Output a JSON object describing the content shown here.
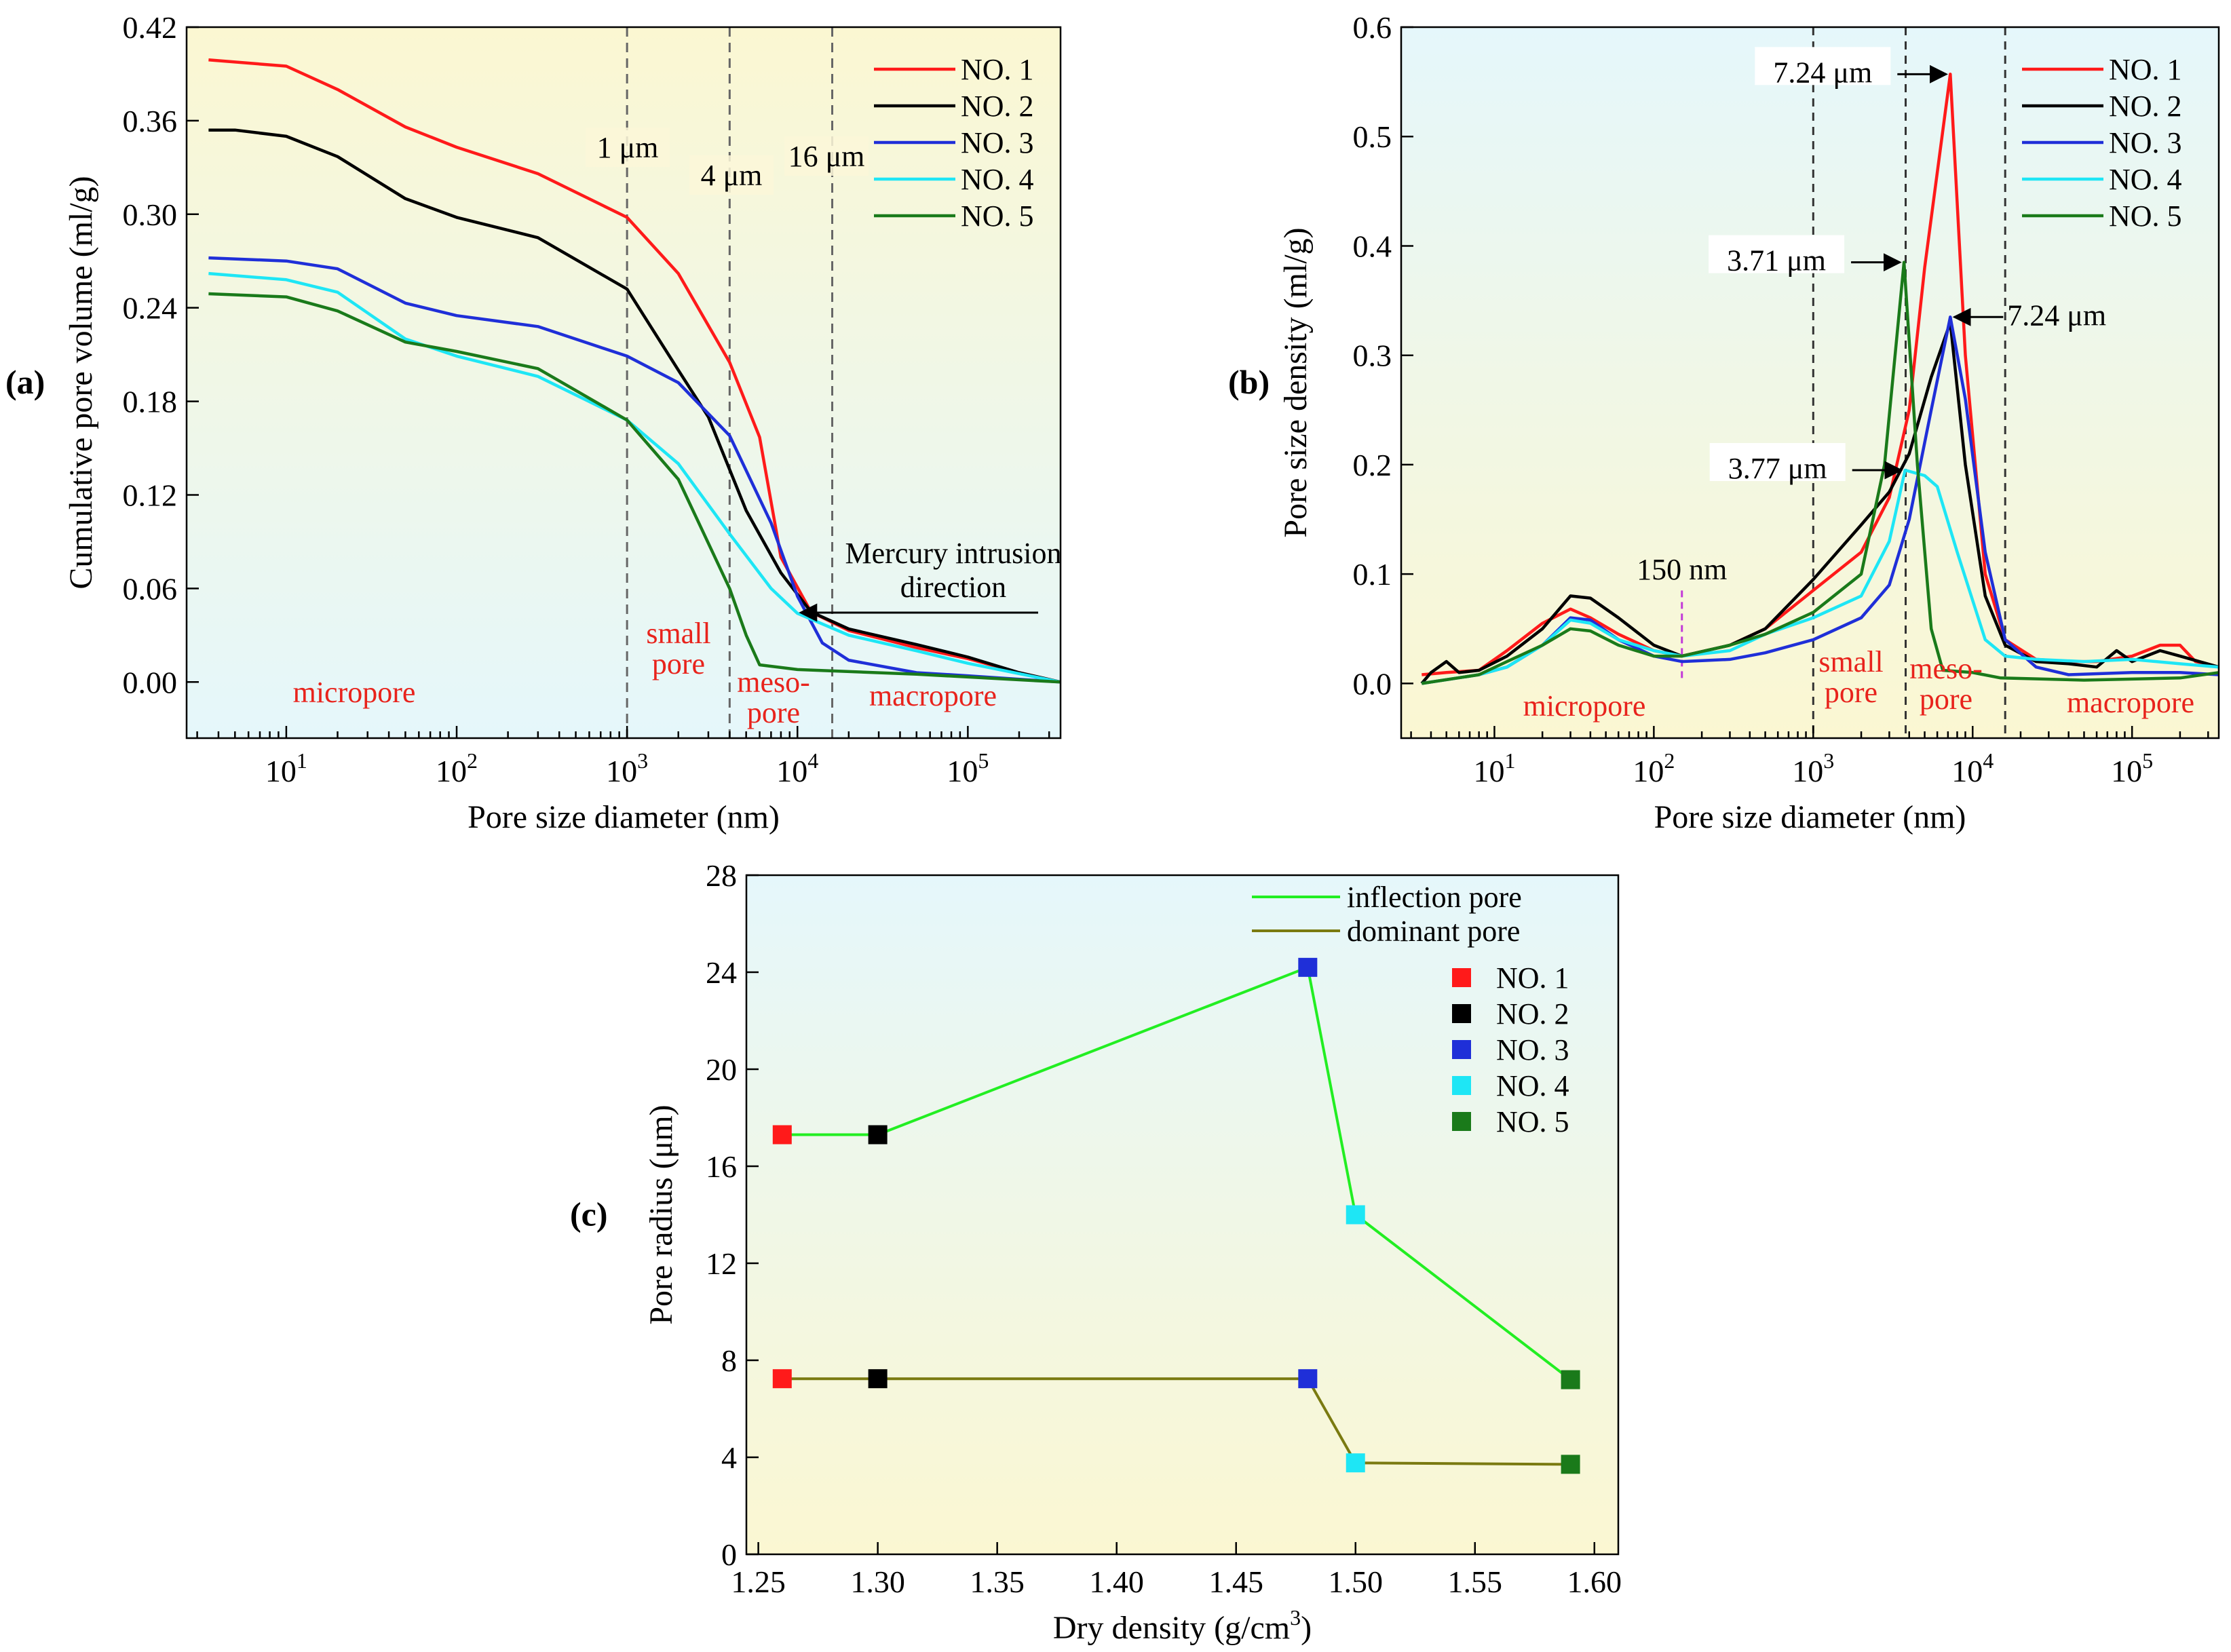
{
  "colors": {
    "NO. 1": "#ff1a1a",
    "NO. 2": "#000000",
    "NO. 3": "#1f2fd8",
    "NO. 4": "#1ee6f5",
    "NO. 5": "#1a7a1a",
    "inflection": "#22ee22",
    "dominant": "#7a7a10",
    "region_text": "#e8231c"
  },
  "chart_data": [
    {
      "panel": "(a)",
      "type": "line",
      "xscale": "log",
      "xlabel": "Pore size diameter (nm)",
      "ylabel": "Cumulative pore volume (ml/g)",
      "xlim": [
        2.6,
        350000
      ],
      "ylim": [
        -0.036,
        0.42
      ],
      "yticks": [
        "0.00",
        "0.06",
        "0.12",
        "0.18",
        "0.24",
        "0.30",
        "0.36",
        "0.42"
      ],
      "xticks": [
        {
          "base": "10",
          "exp": "1"
        },
        {
          "base": "10",
          "exp": "2"
        },
        {
          "base": "10",
          "exp": "3"
        },
        {
          "base": "10",
          "exp": "4"
        },
        {
          "base": "10",
          "exp": "5"
        }
      ],
      "vlines": [
        {
          "x": 1000,
          "label": "1 μm"
        },
        {
          "x": 4000,
          "label": "4 μm"
        },
        {
          "x": 16000,
          "label": "16 μm"
        }
      ],
      "regions": [
        "micropore",
        "small",
        "pore",
        "meso-",
        "pore",
        "macropore"
      ],
      "annotation": [
        "Mercury intrusion",
        "direction"
      ],
      "series": [
        {
          "name": "NO. 1",
          "points": [
            [
              3.5,
              0.399
            ],
            [
              10,
              0.395
            ],
            [
              20,
              0.38
            ],
            [
              50,
              0.356
            ],
            [
              100,
              0.343
            ],
            [
              300,
              0.326
            ],
            [
              1000,
              0.298
            ],
            [
              2000,
              0.262
            ],
            [
              4000,
              0.205
            ],
            [
              6000,
              0.157
            ],
            [
              8000,
              0.08
            ],
            [
              12000,
              0.045
            ],
            [
              20000,
              0.033
            ],
            [
              50000,
              0.022
            ],
            [
              100000,
              0.015
            ],
            [
              200000,
              0.006
            ],
            [
              350000,
              0.0
            ]
          ]
        },
        {
          "name": "NO. 2",
          "points": [
            [
              3.5,
              0.354
            ],
            [
              5,
              0.354
            ],
            [
              10,
              0.35
            ],
            [
              20,
              0.337
            ],
            [
              50,
              0.31
            ],
            [
              100,
              0.298
            ],
            [
              300,
              0.285
            ],
            [
              1000,
              0.252
            ],
            [
              2000,
              0.2
            ],
            [
              3000,
              0.17
            ],
            [
              5000,
              0.11
            ],
            [
              8000,
              0.07
            ],
            [
              12000,
              0.045
            ],
            [
              20000,
              0.034
            ],
            [
              50000,
              0.024
            ],
            [
              100000,
              0.016
            ],
            [
              200000,
              0.006
            ],
            [
              350000,
              0.0
            ]
          ]
        },
        {
          "name": "NO. 3",
          "points": [
            [
              3.5,
              0.272
            ],
            [
              10,
              0.27
            ],
            [
              20,
              0.265
            ],
            [
              50,
              0.243
            ],
            [
              100,
              0.235
            ],
            [
              300,
              0.228
            ],
            [
              1000,
              0.209
            ],
            [
              2000,
              0.192
            ],
            [
              4000,
              0.158
            ],
            [
              7000,
              0.102
            ],
            [
              10000,
              0.055
            ],
            [
              14000,
              0.025
            ],
            [
              20000,
              0.014
            ],
            [
              50000,
              0.006
            ],
            [
              100000,
              0.004
            ],
            [
              350000,
              0.0
            ]
          ]
        },
        {
          "name": "NO. 4",
          "points": [
            [
              3.5,
              0.262
            ],
            [
              10,
              0.258
            ],
            [
              20,
              0.25
            ],
            [
              50,
              0.22
            ],
            [
              100,
              0.209
            ],
            [
              300,
              0.196
            ],
            [
              1000,
              0.168
            ],
            [
              2000,
              0.14
            ],
            [
              4000,
              0.095
            ],
            [
              7000,
              0.06
            ],
            [
              10000,
              0.044
            ],
            [
              20000,
              0.03
            ],
            [
              50000,
              0.02
            ],
            [
              100000,
              0.012
            ],
            [
              350000,
              0.0
            ]
          ]
        },
        {
          "name": "NO. 5",
          "points": [
            [
              3.5,
              0.249
            ],
            [
              10,
              0.247
            ],
            [
              20,
              0.238
            ],
            [
              50,
              0.218
            ],
            [
              100,
              0.212
            ],
            [
              300,
              0.201
            ],
            [
              1000,
              0.168
            ],
            [
              2000,
              0.13
            ],
            [
              4000,
              0.06
            ],
            [
              5000,
              0.03
            ],
            [
              6000,
              0.011
            ],
            [
              10000,
              0.008
            ],
            [
              50000,
              0.005
            ],
            [
              350000,
              0.0
            ]
          ]
        }
      ]
    },
    {
      "panel": "(b)",
      "type": "line",
      "xscale": "log",
      "xlabel": "Pore size diameter (nm)",
      "ylabel": "Pore size density (ml/g)",
      "xlim": [
        2.6,
        350000
      ],
      "ylim": [
        -0.05,
        0.6
      ],
      "yticks": [
        "0.0",
        "0.1",
        "0.2",
        "0.3",
        "0.4",
        "0.5",
        "0.6"
      ],
      "xticks": [
        {
          "base": "10",
          "exp": "1"
        },
        {
          "base": "10",
          "exp": "2"
        },
        {
          "base": "10",
          "exp": "3"
        },
        {
          "base": "10",
          "exp": "4"
        },
        {
          "base": "10",
          "exp": "5"
        }
      ],
      "vlines": [
        {
          "x": 150,
          "label": "150 nm"
        },
        {
          "x": 1000,
          "label": ""
        },
        {
          "x": 3800,
          "label": ""
        },
        {
          "x": 16000,
          "label": ""
        }
      ],
      "regions": [
        "micropore",
        "small",
        "pore",
        "meso-",
        "pore",
        "macropore"
      ],
      "peak_labels": [
        {
          "x": 7240,
          "y": 0.557,
          "text": "7.24 μm",
          "side": "left"
        },
        {
          "x": 3710,
          "y": 0.385,
          "text": "3.71 μm",
          "side": "left"
        },
        {
          "x": 7240,
          "y": 0.335,
          "text": "7.24 μm",
          "side": "right"
        },
        {
          "x": 3770,
          "y": 0.195,
          "text": "3.77 μm",
          "side": "left"
        }
      ],
      "series": [
        {
          "name": "NO. 1",
          "points": [
            [
              3.5,
              0.008
            ],
            [
              5,
              0.01
            ],
            [
              8,
              0.012
            ],
            [
              12,
              0.03
            ],
            [
              20,
              0.055
            ],
            [
              30,
              0.068
            ],
            [
              40,
              0.06
            ],
            [
              60,
              0.045
            ],
            [
              100,
              0.03
            ],
            [
              150,
              0.025
            ],
            [
              300,
              0.035
            ],
            [
              500,
              0.05
            ],
            [
              1000,
              0.085
            ],
            [
              2000,
              0.12
            ],
            [
              3000,
              0.17
            ],
            [
              4000,
              0.25
            ],
            [
              5000,
              0.38
            ],
            [
              7240,
              0.557
            ],
            [
              9000,
              0.3
            ],
            [
              12000,
              0.1
            ],
            [
              16000,
              0.04
            ],
            [
              25000,
              0.022
            ],
            [
              40000,
              0.02
            ],
            [
              60000,
              0.02
            ],
            [
              100000,
              0.025
            ],
            [
              150000,
              0.035
            ],
            [
              200000,
              0.035
            ],
            [
              250000,
              0.02
            ],
            [
              350000,
              0.015
            ]
          ]
        },
        {
          "name": "NO. 2",
          "points": [
            [
              3.5,
              0.0
            ],
            [
              4,
              0.01
            ],
            [
              5,
              0.02
            ],
            [
              6,
              0.01
            ],
            [
              8,
              0.012
            ],
            [
              12,
              0.025
            ],
            [
              20,
              0.05
            ],
            [
              30,
              0.08
            ],
            [
              40,
              0.078
            ],
            [
              60,
              0.06
            ],
            [
              100,
              0.035
            ],
            [
              150,
              0.025
            ],
            [
              300,
              0.035
            ],
            [
              500,
              0.05
            ],
            [
              1000,
              0.095
            ],
            [
              2000,
              0.145
            ],
            [
              3000,
              0.175
            ],
            [
              4000,
              0.21
            ],
            [
              5500,
              0.28
            ],
            [
              7240,
              0.33
            ],
            [
              9000,
              0.2
            ],
            [
              12000,
              0.08
            ],
            [
              16000,
              0.035
            ],
            [
              25000,
              0.02
            ],
            [
              40000,
              0.018
            ],
            [
              60000,
              0.015
            ],
            [
              80000,
              0.03
            ],
            [
              100000,
              0.02
            ],
            [
              150000,
              0.03
            ],
            [
              200000,
              0.025
            ],
            [
              350000,
              0.015
            ]
          ]
        },
        {
          "name": "NO. 3",
          "points": [
            [
              3.5,
              0.0
            ],
            [
              8,
              0.008
            ],
            [
              12,
              0.015
            ],
            [
              20,
              0.035
            ],
            [
              30,
              0.06
            ],
            [
              40,
              0.058
            ],
            [
              60,
              0.04
            ],
            [
              100,
              0.025
            ],
            [
              150,
              0.02
            ],
            [
              300,
              0.022
            ],
            [
              500,
              0.028
            ],
            [
              1000,
              0.04
            ],
            [
              2000,
              0.06
            ],
            [
              3000,
              0.09
            ],
            [
              4000,
              0.15
            ],
            [
              5500,
              0.25
            ],
            [
              7240,
              0.335
            ],
            [
              9000,
              0.26
            ],
            [
              12000,
              0.12
            ],
            [
              16000,
              0.04
            ],
            [
              25000,
              0.015
            ],
            [
              40000,
              0.008
            ],
            [
              100000,
              0.01
            ],
            [
              200000,
              0.01
            ],
            [
              350000,
              0.008
            ]
          ]
        },
        {
          "name": "NO. 4",
          "points": [
            [
              3.5,
              0.0
            ],
            [
              8,
              0.008
            ],
            [
              12,
              0.015
            ],
            [
              20,
              0.035
            ],
            [
              30,
              0.058
            ],
            [
              40,
              0.055
            ],
            [
              60,
              0.04
            ],
            [
              100,
              0.03
            ],
            [
              150,
              0.025
            ],
            [
              300,
              0.03
            ],
            [
              500,
              0.045
            ],
            [
              1000,
              0.06
            ],
            [
              2000,
              0.08
            ],
            [
              3000,
              0.13
            ],
            [
              3770,
              0.195
            ],
            [
              5000,
              0.19
            ],
            [
              6000,
              0.18
            ],
            [
              8000,
              0.12
            ],
            [
              12000,
              0.04
            ],
            [
              16000,
              0.025
            ],
            [
              25000,
              0.022
            ],
            [
              50000,
              0.02
            ],
            [
              100000,
              0.022
            ],
            [
              200000,
              0.018
            ],
            [
              350000,
              0.015
            ]
          ]
        },
        {
          "name": "NO. 5",
          "points": [
            [
              3.5,
              0.0
            ],
            [
              8,
              0.008
            ],
            [
              12,
              0.02
            ],
            [
              20,
              0.035
            ],
            [
              30,
              0.05
            ],
            [
              40,
              0.048
            ],
            [
              60,
              0.035
            ],
            [
              100,
              0.025
            ],
            [
              150,
              0.025
            ],
            [
              300,
              0.035
            ],
            [
              500,
              0.045
            ],
            [
              1000,
              0.065
            ],
            [
              2000,
              0.1
            ],
            [
              2800,
              0.2
            ],
            [
              3710,
              0.385
            ],
            [
              4500,
              0.2
            ],
            [
              5500,
              0.05
            ],
            [
              6500,
              0.012
            ],
            [
              10000,
              0.01
            ],
            [
              15000,
              0.005
            ],
            [
              50000,
              0.003
            ],
            [
              200000,
              0.005
            ],
            [
              350000,
              0.01
            ]
          ]
        }
      ]
    },
    {
      "panel": "(c)",
      "type": "line",
      "xlabel": "Dry density (g/cm",
      "xlabel_sup": "3",
      "xlabel_tail": ")",
      "ylabel": "Pore radius (μm)",
      "xlim": [
        1.245,
        1.61
      ],
      "ylim": [
        0,
        28
      ],
      "xticks": [
        "1.25",
        "1.30",
        "1.35",
        "1.40",
        "1.45",
        "1.50",
        "1.55",
        "1.60"
      ],
      "yticks": [
        "0",
        "4",
        "8",
        "12",
        "16",
        "20",
        "24",
        "28"
      ],
      "series": [
        {
          "name": "inflection pore",
          "x": [
            1.26,
            1.3,
            1.48,
            1.5,
            1.59
          ],
          "values": [
            17.3,
            17.3,
            24.2,
            14.0,
            7.2
          ]
        },
        {
          "name": "dominant pore",
          "x": [
            1.26,
            1.3,
            1.48,
            1.5,
            1.59
          ],
          "values": [
            7.24,
            7.24,
            7.24,
            3.77,
            3.71
          ]
        }
      ],
      "marker_samples": [
        "NO. 1",
        "NO. 2",
        "NO. 3",
        "NO. 4",
        "NO. 5"
      ]
    }
  ]
}
